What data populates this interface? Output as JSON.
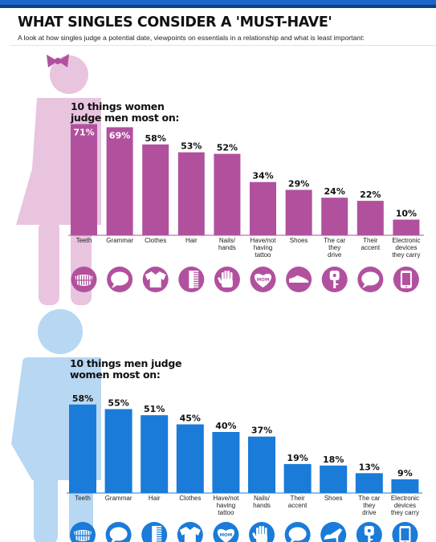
{
  "title": "WHAT SINGLES CONSIDER A 'MUST-HAVE'",
  "subtitle": "A look at how singles judge a potential date, viewpoints on essentials in a relationship and what is least important:",
  "colors": {
    "header_bar": "#1b67c9",
    "women_bar": "#b1519e",
    "women_figure": "#e8c4df",
    "men_bar": "#1a7bd8",
    "men_figure": "#b7d7f3"
  },
  "chart_data": [
    {
      "type": "bar",
      "title_lines": [
        "10 things women",
        "judge men most on:"
      ],
      "categories": [
        [
          "Teeth"
        ],
        [
          "Grammar"
        ],
        [
          "Clothes"
        ],
        [
          "Hair"
        ],
        [
          "Nails/",
          "hands"
        ],
        [
          "Have/not",
          "having",
          "tattoo"
        ],
        [
          "Shoes"
        ],
        [
          "The car",
          "they",
          "drive"
        ],
        [
          "Their",
          "accent"
        ],
        [
          "Electronic",
          "devices",
          "they carry"
        ]
      ],
      "values": [
        71,
        69,
        58,
        53,
        52,
        34,
        29,
        24,
        22,
        10
      ],
      "labels": [
        "71%",
        "69%",
        "58%",
        "53%",
        "52%",
        "34%",
        "29%",
        "24%",
        "22%",
        "10%"
      ],
      "icons": [
        "teeth-icon",
        "speech-bubble-icon",
        "shirt-icon",
        "comb-icon",
        "hand-icon",
        "tattoo-icon",
        "shoe-icon",
        "car-key-icon",
        "speech-bubble-icon",
        "phone-icon"
      ],
      "icon_texts": [
        "",
        "",
        "",
        "",
        "",
        "MOM",
        "",
        "",
        "",
        ""
      ],
      "ylim": [
        0,
        100
      ]
    },
    {
      "type": "bar",
      "title_lines": [
        "10 things men judge",
        "women most on:"
      ],
      "categories": [
        [
          "Teeth"
        ],
        [
          "Grammar"
        ],
        [
          "Hair"
        ],
        [
          "Clothes"
        ],
        [
          "Have/not",
          "having",
          "tattoo"
        ],
        [
          "Nails/",
          "hands"
        ],
        [
          "Their",
          "accent"
        ],
        [
          "Shoes"
        ],
        [
          "The car",
          "they",
          "drive"
        ],
        [
          "Electronic",
          "devices",
          "they carry"
        ]
      ],
      "values": [
        58,
        55,
        51,
        45,
        40,
        37,
        19,
        18,
        13,
        9
      ],
      "labels": [
        "58%",
        "55%",
        "51%",
        "45%",
        "40%",
        "37%",
        "19%",
        "18%",
        "13%",
        "9%"
      ],
      "icons": [
        "teeth-icon",
        "speech-bubble-icon",
        "comb-icon",
        "shirt-icon",
        "tattoo-icon",
        "hand-icon",
        "speech-bubble-icon",
        "high-heel-icon",
        "car-key-icon",
        "phone-icon"
      ],
      "icon_texts": [
        "",
        "",
        "",
        "",
        "MOM",
        "",
        "",
        "",
        "",
        ""
      ],
      "ylim": [
        0,
        100
      ]
    }
  ]
}
